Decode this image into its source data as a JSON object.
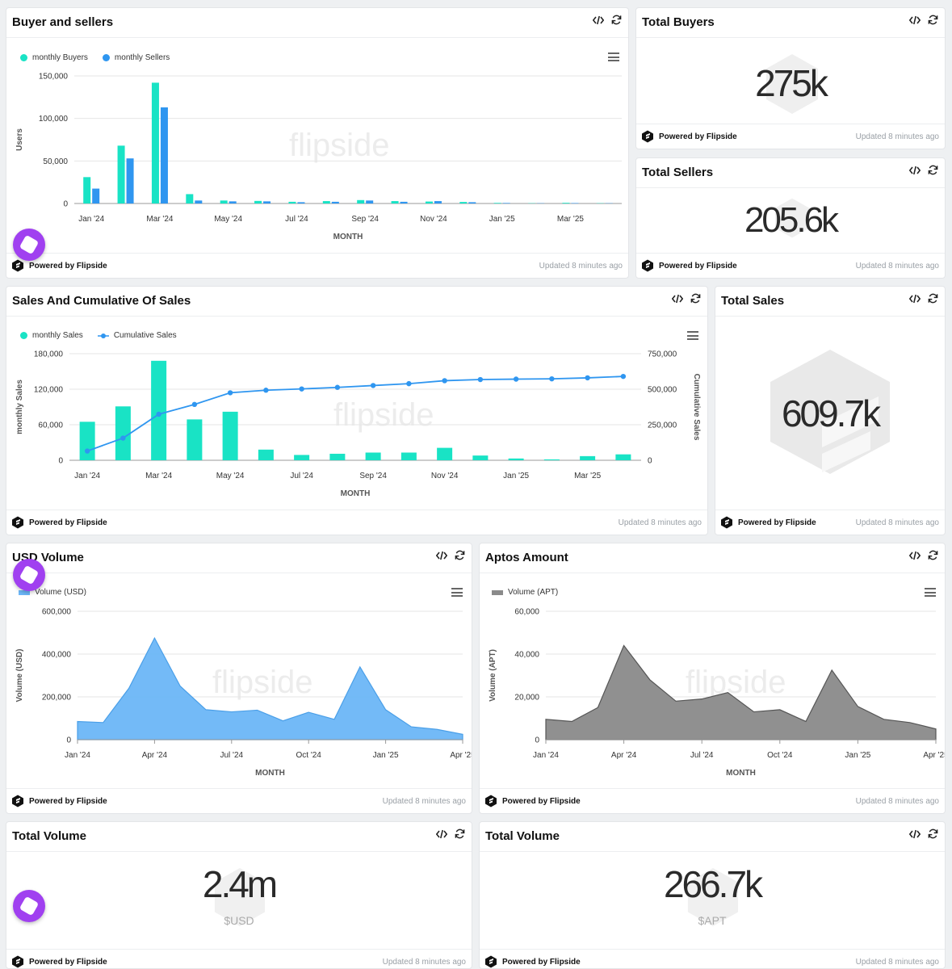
{
  "footer": {
    "powered": "Powered by Flipside",
    "updated": "Updated 8 minutes ago"
  },
  "watermark": "flipside",
  "colors": {
    "teal": "#19e3c5",
    "blue": "#2f96f0",
    "usd_fill": "#6cb6f7",
    "apt_fill": "#8a8a8a"
  },
  "cards": {
    "buyers_sellers": {
      "title": "Buyer and sellers"
    },
    "total_buyers": {
      "title": "Total Buyers",
      "value": "275k"
    },
    "total_sellers": {
      "title": "Total Sellers",
      "value": "205.6k"
    },
    "sales_cumulative": {
      "title": "Sales And Cumulative Of Sales"
    },
    "total_sales": {
      "title": "Total Sales",
      "value": "609.7k"
    },
    "usd_volume": {
      "title": "USD Volume"
    },
    "aptos_amount": {
      "title": "Aptos Amount"
    },
    "total_volume_usd": {
      "title": "Total Volume",
      "value": "2.4m",
      "unit": "$USD"
    },
    "total_volume_apt": {
      "title": "Total Volume",
      "value": "266.7k",
      "unit": "$APT"
    }
  },
  "chart_data": [
    {
      "id": "buyers_sellers",
      "type": "bar",
      "xlabel": "MONTH",
      "ylabel": "Users",
      "ylim": [
        0,
        150000
      ],
      "yticks": [
        0,
        50000,
        100000,
        150000
      ],
      "ytick_labels": [
        "0",
        "50,000",
        "100,000",
        "150,000"
      ],
      "xtick_labels": [
        "Jan '24",
        "Mar '24",
        "May '24",
        "Jul '24",
        "Sep '24",
        "Nov '24",
        "Jan '25",
        "Mar '25"
      ],
      "categories": [
        "Jan '24",
        "Feb '24",
        "Mar '24",
        "Apr '24",
        "May '24",
        "Jun '24",
        "Jul '24",
        "Aug '24",
        "Sep '24",
        "Oct '24",
        "Nov '24",
        "Dec '24",
        "Jan '25",
        "Feb '25",
        "Mar '25",
        "Apr '25"
      ],
      "series": [
        {
          "name": "monthly Buyers",
          "color": "#19e3c5",
          "values": [
            31000,
            68000,
            142000,
            11000,
            3500,
            3000,
            2000,
            2800,
            4000,
            2800,
            2300,
            1800,
            700,
            300,
            800,
            300
          ]
        },
        {
          "name": "monthly Sellers",
          "color": "#2f96f0",
          "values": [
            17500,
            53000,
            113000,
            3500,
            2500,
            2500,
            1500,
            2000,
            3500,
            2000,
            2800,
            1500,
            600,
            300,
            500,
            300
          ]
        }
      ],
      "legend": "top-left"
    },
    {
      "id": "sales_cumulative",
      "type": "bar",
      "xlabel": "MONTH",
      "ylabel": "monthly Sales",
      "y2label": "Cumulative Sales",
      "ylim": [
        0,
        180000
      ],
      "yticks": [
        0,
        60000,
        120000,
        180000
      ],
      "ytick_labels": [
        "0",
        "60,000",
        "120,000",
        "180,000"
      ],
      "y2lim": [
        0,
        750000
      ],
      "y2ticks": [
        0,
        250000,
        500000,
        750000
      ],
      "y2tick_labels": [
        "0",
        "250,000",
        "500,000",
        "750,000"
      ],
      "xtick_labels": [
        "Jan '24",
        "Mar '24",
        "May '24",
        "Jul '24",
        "Sep '24",
        "Nov '24",
        "Jan '25",
        "Mar '25"
      ],
      "categories": [
        "Jan '24",
        "Feb '24",
        "Mar '24",
        "Apr '24",
        "May '24",
        "Jun '24",
        "Jul '24",
        "Aug '24",
        "Sep '24",
        "Oct '24",
        "Nov '24",
        "Dec '24",
        "Jan '25",
        "Feb '25",
        "Mar '25",
        "Apr '25"
      ],
      "series": [
        {
          "name": "monthly Sales",
          "color": "#19e3c5",
          "kind": "bar",
          "values": [
            65000,
            91000,
            168000,
            69000,
            82000,
            18000,
            9000,
            11000,
            13000,
            13000,
            21000,
            8000,
            3000,
            1500,
            7000,
            10000
          ]
        },
        {
          "name": "Cumulative Sales",
          "color": "#2f96f0",
          "kind": "line",
          "values": [
            65000,
            156000,
            324000,
            393000,
            475000,
            493000,
            502000,
            513000,
            526000,
            539000,
            560000,
            568000,
            571000,
            573000,
            580000,
            590000
          ]
        }
      ],
      "legend": "top-left"
    },
    {
      "id": "usd_volume",
      "type": "area",
      "xlabel": "MONTH",
      "ylabel": "Volume (USD)",
      "ylim": [
        0,
        600000
      ],
      "yticks": [
        0,
        200000,
        400000,
        600000
      ],
      "ytick_labels": [
        "0",
        "200,000",
        "400,000",
        "600,000"
      ],
      "xtick_labels": [
        "Jan '24",
        "Apr '24",
        "Jul '24",
        "Oct '24",
        "Jan '25",
        "Apr '25"
      ],
      "xtick_index": [
        0,
        6,
        12,
        18,
        24,
        30
      ],
      "series": [
        {
          "name": "Volume (USD)",
          "color": "#6cb6f7",
          "values": [
            85000,
            80000,
            240000,
            475000,
            250000,
            140000,
            130000,
            138000,
            88000,
            128000,
            95000,
            340000,
            140000,
            60000,
            48000,
            25000
          ]
        }
      ],
      "x_index": [
        0,
        2,
        4,
        6,
        8,
        10,
        12,
        14,
        16,
        18,
        20,
        22,
        24,
        26,
        28,
        30
      ],
      "legend": "top-left"
    },
    {
      "id": "aptos_amount",
      "type": "area",
      "xlabel": "MONTH",
      "ylabel": "Volume (APT)",
      "ylim": [
        0,
        60000
      ],
      "yticks": [
        0,
        20000,
        40000,
        60000
      ],
      "ytick_labels": [
        "0",
        "20,000",
        "40,000",
        "60,000"
      ],
      "xtick_labels": [
        "Jan '24",
        "Apr '24",
        "Jul '24",
        "Oct '24",
        "Jan '25",
        "Apr '25"
      ],
      "xtick_index": [
        0,
        6,
        12,
        18,
        24,
        30
      ],
      "series": [
        {
          "name": "Volume (APT)",
          "color": "#8a8a8a",
          "values": [
            9500,
            8500,
            15000,
            44000,
            28000,
            18000,
            19000,
            22000,
            13000,
            14000,
            8500,
            32500,
            15500,
            9500,
            8000,
            5000
          ]
        }
      ],
      "x_index": [
        0,
        2,
        4,
        6,
        8,
        10,
        12,
        14,
        16,
        18,
        20,
        22,
        24,
        26,
        28,
        30
      ],
      "legend": "top-left"
    }
  ]
}
